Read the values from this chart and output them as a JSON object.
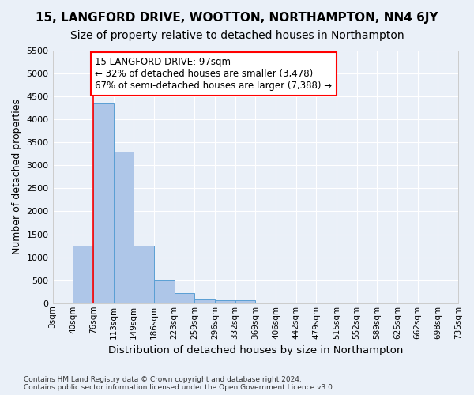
{
  "title": "15, LANGFORD DRIVE, WOOTTON, NORTHAMPTON, NN4 6JY",
  "subtitle": "Size of property relative to detached houses in Northampton",
  "xlabel": "Distribution of detached houses by size in Northampton",
  "ylabel": "Number of detached properties",
  "footer_line1": "Contains HM Land Registry data © Crown copyright and database right 2024.",
  "footer_line2": "Contains public sector information licensed under the Open Government Licence v3.0.",
  "bar_values": [
    0,
    1260,
    4350,
    3300,
    1260,
    490,
    220,
    90,
    70,
    60,
    0,
    0,
    0,
    0,
    0,
    0,
    0,
    0,
    0,
    0
  ],
  "tick_labels": [
    "3sqm",
    "40sqm",
    "76sqm",
    "113sqm",
    "149sqm",
    "186sqm",
    "223sqm",
    "259sqm",
    "296sqm",
    "332sqm",
    "369sqm",
    "406sqm",
    "442sqm",
    "479sqm",
    "515sqm",
    "552sqm",
    "589sqm",
    "625sqm",
    "662sqm",
    "698sqm",
    "735sqm"
  ],
  "bar_color": "#aec6e8",
  "bar_edge_color": "#5a9fd4",
  "vline_x": 1.5,
  "annotation_title": "15 LANGFORD DRIVE: 97sqm",
  "annotation_line1": "← 32% of detached houses are smaller (3,478)",
  "annotation_line2": "67% of semi-detached houses are larger (7,388) →",
  "ylim": [
    0,
    5500
  ],
  "yticks": [
    0,
    500,
    1000,
    1500,
    2000,
    2500,
    3000,
    3500,
    4000,
    4500,
    5000,
    5500
  ],
  "bg_color": "#eaf0f8",
  "plot_bg_color": "#eaf0f8",
  "annotation_box_color": "white",
  "annotation_box_edge": "red",
  "vline_color": "red",
  "grid_color": "white",
  "title_fontsize": 11,
  "subtitle_fontsize": 10,
  "annotation_fontsize": 8.5
}
